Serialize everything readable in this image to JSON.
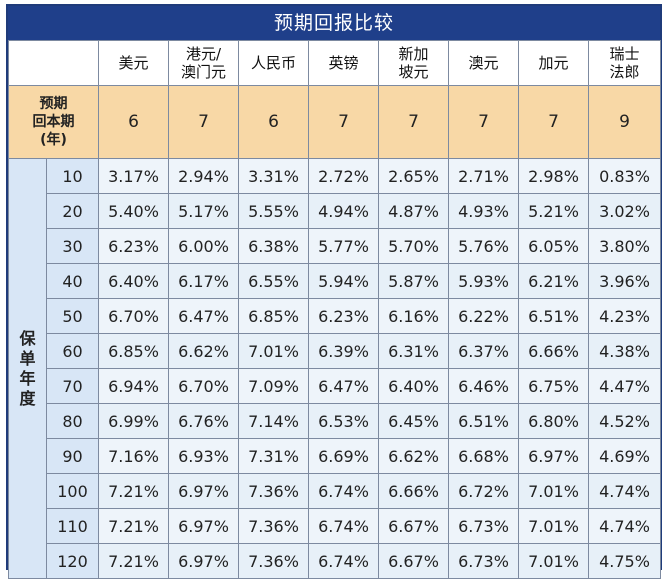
{
  "title": "预期回报比较",
  "currencies": [
    "美元",
    "港元/澳门元",
    "人民币",
    "英镑",
    "新加坡元",
    "澳元",
    "加元",
    "瑞士法郎"
  ],
  "currency_display": [
    [
      "美元"
    ],
    [
      "港元/",
      "澳门元"
    ],
    [
      "人民币"
    ],
    [
      "英镑"
    ],
    [
      "新加",
      "坡元"
    ],
    [
      "澳元"
    ],
    [
      "加元"
    ],
    [
      "瑞士",
      "法郎"
    ]
  ],
  "return_period_label": [
    "预期",
    "回本期",
    "(年)"
  ],
  "return_period": [
    "6",
    "7",
    "6",
    "7",
    "7",
    "7",
    "7",
    "9"
  ],
  "policy_year_label": [
    "保",
    "单",
    "年",
    "度"
  ],
  "rows": [
    {
      "year": "10",
      "values": [
        "3.17%",
        "2.94%",
        "3.31%",
        "2.72%",
        "2.65%",
        "2.71%",
        "2.98%",
        "0.83%"
      ]
    },
    {
      "year": "20",
      "values": [
        "5.40%",
        "5.17%",
        "5.55%",
        "4.94%",
        "4.87%",
        "4.93%",
        "5.21%",
        "3.02%"
      ]
    },
    {
      "year": "30",
      "values": [
        "6.23%",
        "6.00%",
        "6.38%",
        "5.77%",
        "5.70%",
        "5.76%",
        "6.05%",
        "3.80%"
      ]
    },
    {
      "year": "40",
      "values": [
        "6.40%",
        "6.17%",
        "6.55%",
        "5.94%",
        "5.87%",
        "5.93%",
        "6.21%",
        "3.96%"
      ]
    },
    {
      "year": "50",
      "values": [
        "6.70%",
        "6.47%",
        "6.85%",
        "6.23%",
        "6.16%",
        "6.22%",
        "6.51%",
        "4.23%"
      ]
    },
    {
      "year": "60",
      "values": [
        "6.85%",
        "6.62%",
        "7.01%",
        "6.39%",
        "6.31%",
        "6.37%",
        "6.66%",
        "4.38%"
      ]
    },
    {
      "year": "70",
      "values": [
        "6.94%",
        "6.70%",
        "7.09%",
        "6.47%",
        "6.40%",
        "6.46%",
        "6.75%",
        "4.47%"
      ]
    },
    {
      "year": "80",
      "values": [
        "6.99%",
        "6.76%",
        "7.14%",
        "6.53%",
        "6.45%",
        "6.51%",
        "6.80%",
        "4.52%"
      ]
    },
    {
      "year": "90",
      "values": [
        "7.16%",
        "6.93%",
        "7.31%",
        "6.69%",
        "6.62%",
        "6.68%",
        "6.97%",
        "4.69%"
      ]
    },
    {
      "year": "100",
      "values": [
        "7.21%",
        "6.97%",
        "7.36%",
        "6.74%",
        "6.66%",
        "6.72%",
        "7.01%",
        "4.74%"
      ]
    },
    {
      "year": "110",
      "values": [
        "7.21%",
        "6.97%",
        "7.36%",
        "6.74%",
        "6.67%",
        "6.73%",
        "7.01%",
        "4.74%"
      ]
    },
    {
      "year": "120",
      "values": [
        "7.21%",
        "6.97%",
        "7.36%",
        "6.74%",
        "6.67%",
        "6.73%",
        "7.01%",
        "4.75%"
      ]
    }
  ],
  "colors": {
    "title_bg": "#1f3f8a",
    "return_row_bg": "#f8d8a6",
    "year_col_bg": "#d8e6f6",
    "cell_bg": "#e7f0f8",
    "border": "#7d8aa0"
  }
}
